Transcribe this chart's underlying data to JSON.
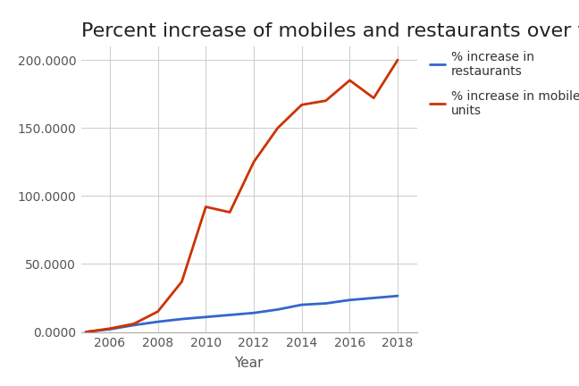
{
  "title": "Percent increase of mobiles and restaurants over time",
  "xlabel": "Year",
  "ylabel": "",
  "years": [
    2005,
    2006,
    2007,
    2008,
    2009,
    2010,
    2011,
    2012,
    2013,
    2014,
    2015,
    2016,
    2017,
    2018
  ],
  "restaurants": [
    0.0,
    2.0,
    5.0,
    7.5,
    9.5,
    11.0,
    12.5,
    14.0,
    16.5,
    20.0,
    21.0,
    23.5,
    25.0,
    26.5
  ],
  "mobiles": [
    0.0,
    2.5,
    6.0,
    15.0,
    37.0,
    92.0,
    88.0,
    125.0,
    150.0,
    167.0,
    170.0,
    185.0,
    172.0,
    200.0
  ],
  "restaurant_color": "#3366cc",
  "mobile_color": "#cc3300",
  "restaurant_label": "% increase in\nrestaurants",
  "mobile_label": "% increase in mobile\nunits",
  "ylim": [
    0,
    210
  ],
  "yticks": [
    0.0,
    50.0,
    100.0,
    150.0,
    200.0
  ],
  "xticks": [
    2006,
    2008,
    2010,
    2012,
    2014,
    2016,
    2018
  ],
  "xlim": [
    2004.8,
    2018.8
  ],
  "background_color": "#ffffff",
  "grid_color": "#d0d0d0",
  "title_fontsize": 16,
  "axis_fontsize": 11,
  "legend_fontsize": 10,
  "tick_fontsize": 10,
  "line_width": 2.0
}
